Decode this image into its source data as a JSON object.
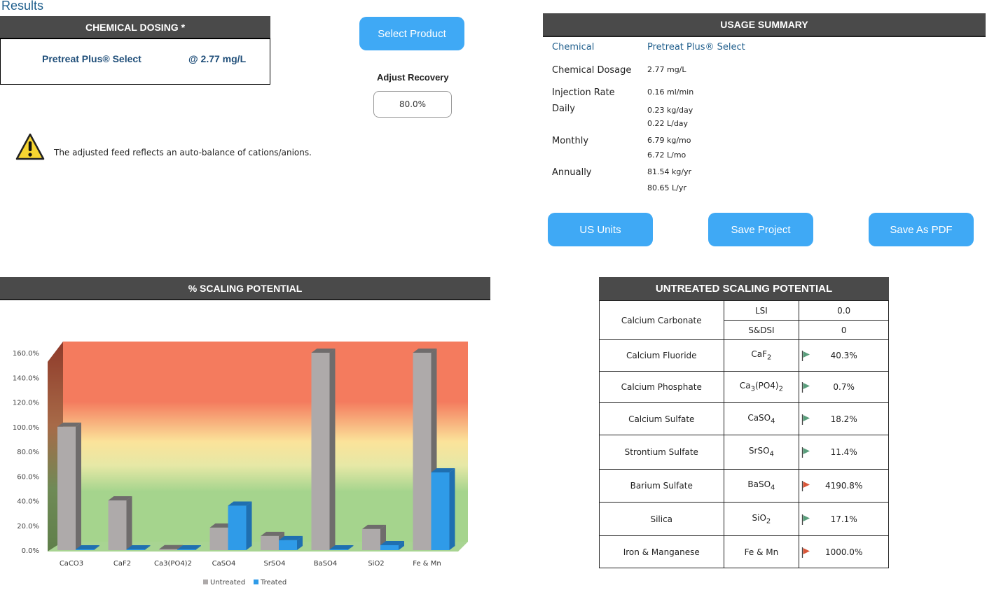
{
  "page_title": "Results",
  "dosing": {
    "header": "CHEMICAL DOSING *",
    "product": "Pretreat Plus® Select",
    "rate": "@ 2.77 mg/L"
  },
  "controls": {
    "select_product": "Select Product",
    "adjust_recovery_label": "Adjust Recovery",
    "recovery_value": "80.0%"
  },
  "warning": {
    "icon": "warning-triangle-icon",
    "text": "The adjusted feed reflects an auto-balance of cations/anions."
  },
  "usage_summary": {
    "header": "USAGE SUMMARY",
    "chemical_label": "Chemical",
    "chemical_value": "Pretreat Plus® Select",
    "dosage_label": "Chemical Dosage",
    "dosage_value": "2.77 mg/L",
    "injection_label": "Injection Rate",
    "injection_value": "0.16 ml/min",
    "daily_label": "Daily",
    "daily_kg": "0.23 kg/day",
    "daily_l": "0.22 L/day",
    "monthly_label": "Monthly",
    "monthly_kg": "6.79 kg/mo",
    "monthly_l": "6.72 L/mo",
    "annually_label": "Annually",
    "annually_kg": "81.54 kg/yr",
    "annually_l": "80.65 L/yr"
  },
  "buttons": {
    "units": "US Units",
    "save_project": "Save Project",
    "save_pdf": "Save As PDF"
  },
  "chart_header": "% SCALING POTENTIAL",
  "chart_data": {
    "type": "bar",
    "categories": [
      "CaCO3",
      "CaF2",
      "Ca3(PO4)2",
      "CaSO4",
      "SrSO4",
      "BaSO4",
      "SiO2",
      "Fe & Mn"
    ],
    "series": [
      {
        "name": "Untreated",
        "color": "#aeaaaa",
        "values": [
          100,
          40.3,
          0.7,
          18.2,
          11.4,
          160,
          17.1,
          160
        ]
      },
      {
        "name": "Treated",
        "color": "#2f9be8",
        "values": [
          0,
          0,
          0,
          36,
          8,
          0,
          4,
          63
        ]
      }
    ],
    "y_ticks": [
      "0.0%",
      "20.0%",
      "40.0%",
      "60.0%",
      "80.0%",
      "100.0%",
      "120.0%",
      "140.0%",
      "160.0%"
    ],
    "ylim": [
      0,
      160
    ],
    "legend_position": "bottom",
    "background_zones": [
      "green",
      "yellow",
      "red"
    ]
  },
  "untreated": {
    "header": "UNTREATED SCALING POTENTIAL",
    "carbonate": {
      "name": "Calcium Carbonate",
      "lsi_label": "LSI",
      "lsi_value": "0.0",
      "sdsi_label": "S&DSI",
      "sdsi_value": "0"
    },
    "rows": [
      {
        "name": "Calcium Fluoride",
        "formula_html": "CaF<sub>2</sub>",
        "value": "40.3%",
        "flag": "green"
      },
      {
        "name": "Calcium Phosphate",
        "formula_html": "Ca<sub>3</sub>(PO4)<sub>2</sub>",
        "value": "0.7%",
        "flag": "green"
      },
      {
        "name": "Calcium Sulfate",
        "formula_html": "CaSO<sub>4</sub>",
        "value": "18.2%",
        "flag": "green"
      },
      {
        "name": "Strontium Sulfate",
        "formula_html": "SrSO<sub>4</sub>",
        "value": "11.4%",
        "flag": "green"
      },
      {
        "name": "Barium Sulfate",
        "formula_html": "BaSO<sub>4</sub>",
        "value": "4190.8%",
        "flag": "red"
      },
      {
        "name": "Silica",
        "formula_html": "SiO<sub>2</sub>",
        "value": "17.1%",
        "flag": "green"
      },
      {
        "name": "Iron & Manganese",
        "formula_html": "Fe & Mn",
        "value": "1000.0%",
        "flag": "red"
      }
    ],
    "flag_colors": {
      "green": "#5a9e7c",
      "red": "#d9573a"
    }
  }
}
